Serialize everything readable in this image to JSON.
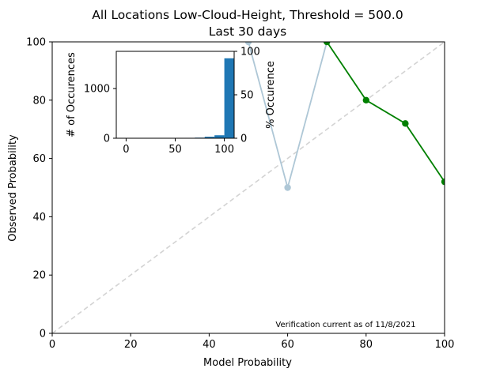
{
  "chart_data": [
    {
      "type": "line",
      "title": "All Locations Low-Cloud-Height, Threshold = 500.0",
      "subtitle": "Last 30 days",
      "xlabel": "Model Probability",
      "ylabel": "Observed Probability",
      "xlim": [
        0,
        100
      ],
      "ylim": [
        0,
        100
      ],
      "xticks": [
        "0",
        "20",
        "40",
        "60",
        "80",
        "100"
      ],
      "yticks": [
        "0",
        "20",
        "40",
        "60",
        "80",
        "100"
      ],
      "grid": false,
      "reference_line": {
        "x": [
          0,
          100
        ],
        "y": [
          0,
          100
        ],
        "color": "#d3d3d3",
        "style": "dashed"
      },
      "series": [
        {
          "color": "#aec7d6",
          "x": [
            50,
            60,
            70
          ],
          "y": [
            100,
            50,
            100
          ]
        },
        {
          "color": "#008000",
          "x": [
            70,
            80,
            90,
            100
          ],
          "y": [
            100,
            80,
            72,
            52
          ]
        }
      ],
      "annotation": "Verification current as of 11/8/2021"
    },
    {
      "type": "bar",
      "inset": true,
      "ylabel_left": "# of Occurences",
      "ylabel_right": "% Occurence",
      "xlim": [
        -10,
        110
      ],
      "ylim_left": [
        0,
        1750
      ],
      "ylim_right": [
        0,
        100
      ],
      "xticks": [
        "0",
        "50",
        "100"
      ],
      "yticks_left": [
        "0",
        "1000"
      ],
      "yticks_right": [
        "0",
        "50",
        "100"
      ],
      "bar_color": "#1f77b4",
      "bins": [
        {
          "x0": 50,
          "x1": 60,
          "count": 6
        },
        {
          "x0": 60,
          "x1": 70,
          "count": 8
        },
        {
          "x0": 70,
          "x1": 80,
          "count": 12
        },
        {
          "x0": 80,
          "x1": 90,
          "count": 30
        },
        {
          "x0": 90,
          "x1": 100,
          "count": 60
        },
        {
          "x0": 100,
          "x1": 110,
          "count": 1610
        }
      ]
    }
  ]
}
